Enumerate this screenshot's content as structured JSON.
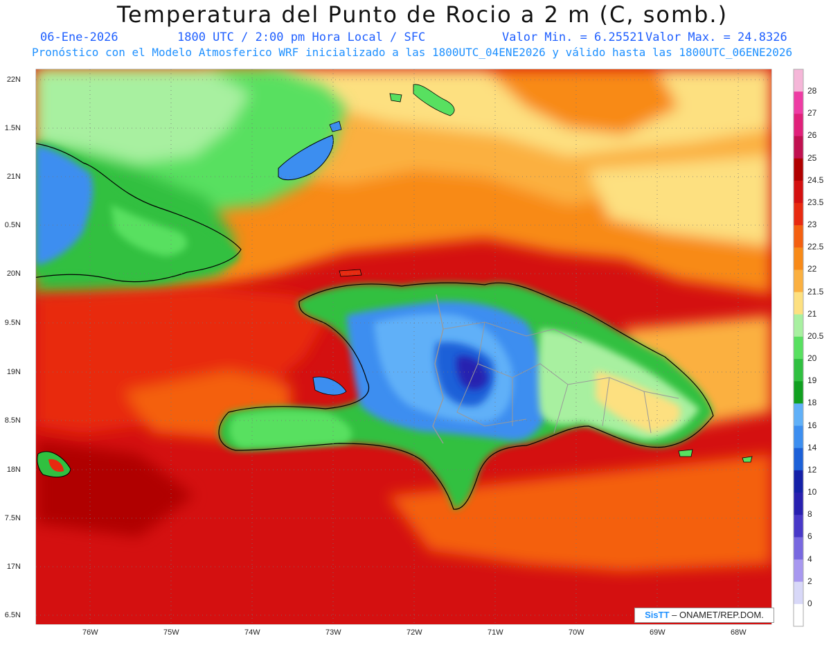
{
  "header": {
    "title": "Temperatura del Punto de Rocio a 2 m (C, somb.)",
    "date": "06-Ene-2026",
    "time": "1800 UTC / 2:00 pm Hora Local / SFC",
    "min": "Valor Min. = 6.25521",
    "max": "Valor Max. = 24.8326",
    "model_line": "Pronóstico con el Modelo Atmosferico WRF inicializado a las 1800UTC_04ENE2026 y válido hasta las  1800UTC_06ENE2026"
  },
  "axes": {
    "lat_labels": [
      "22N",
      "1.5N",
      "21N",
      "0.5N",
      "20N",
      "9.5N",
      "19N",
      "8.5N",
      "18N",
      "7.5N",
      "17N",
      "6.5N"
    ],
    "lon_labels": [
      "76W",
      "75W",
      "74W",
      "73W",
      "72W",
      "71W",
      "70W",
      "69W",
      "68W"
    ]
  },
  "colorbar": {
    "labels": [
      "28",
      "27",
      "26",
      "25",
      "24.5",
      "23.5",
      "23",
      "22.5",
      "22",
      "21.5",
      "21",
      "20.5",
      "20",
      "19",
      "18",
      "16",
      "14",
      "12",
      "10",
      "8",
      "6",
      "4",
      "2",
      "0"
    ],
    "colors": [
      "#f5b6d8",
      "#ee3ca4",
      "#e0207a",
      "#c01050",
      "#b00000",
      "#d41010",
      "#e82a10",
      "#f46010",
      "#f88a18",
      "#fbb040",
      "#fde080",
      "#a8f0a0",
      "#58e060",
      "#30c040",
      "#10a020",
      "#60b0f8",
      "#3c8ef0",
      "#1c60d8",
      "#1420a8",
      "#2820b0",
      "#4838c8",
      "#7868e0",
      "#a898f0",
      "#d8d8f8",
      "#ffffff"
    ]
  },
  "credit": {
    "brand": "SisTT",
    "text": " – ONAMET/REP.DOM."
  }
}
